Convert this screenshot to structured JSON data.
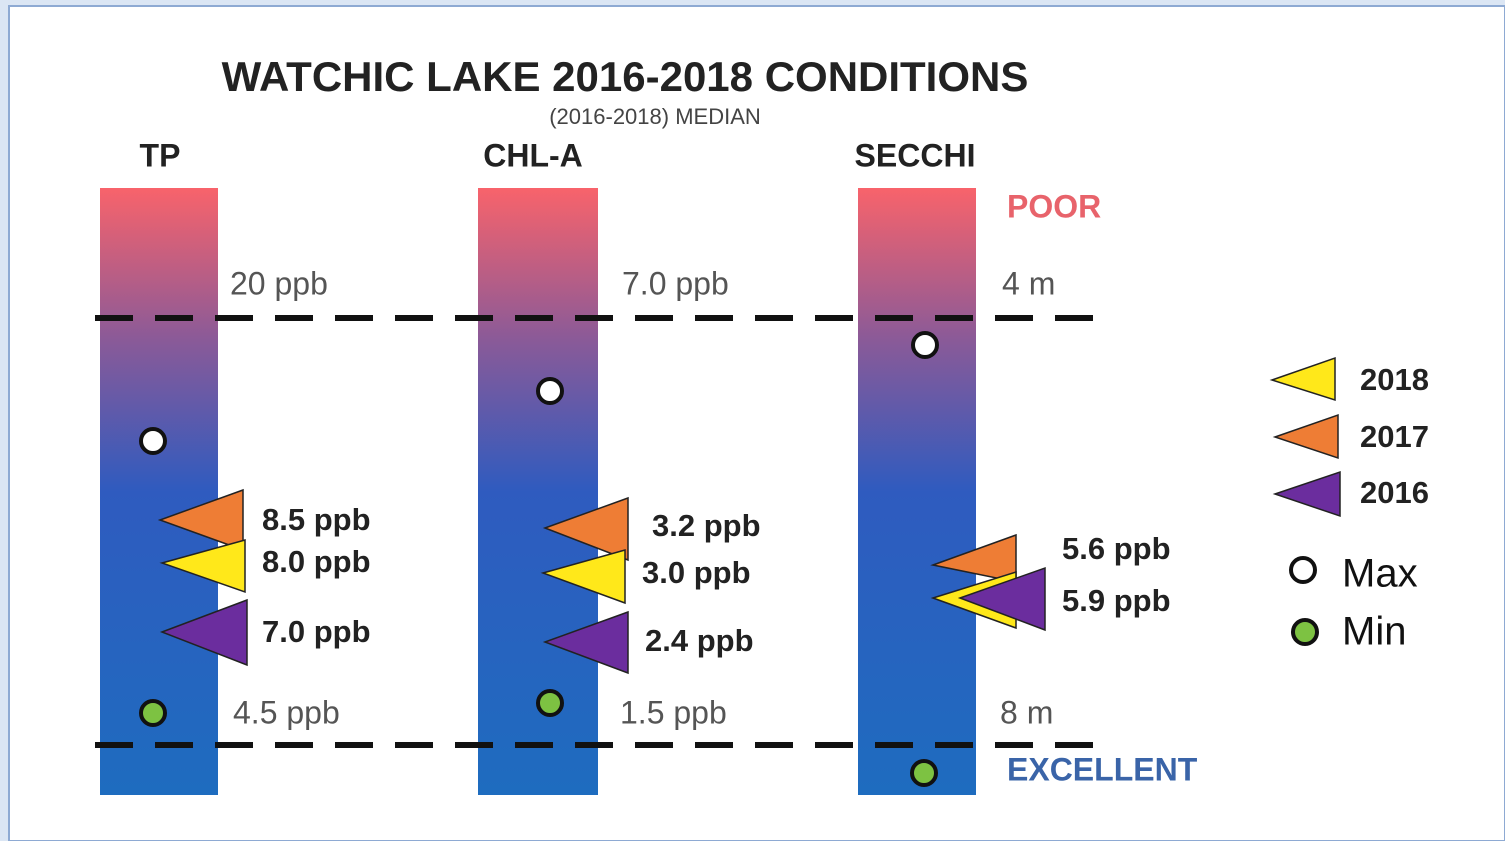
{
  "title": "WATCHIC LAKE 2016-2018 CONDITIONS",
  "subtitle": "(2016-2018) MEDIAN",
  "poor_label": "POOR",
  "excellent_label": "EXCELLENT",
  "columns": [
    {
      "label": "TP",
      "poor_threshold": "20 ppb",
      "excellent_threshold": "4.5 ppb",
      "median_labels": [
        "8.5 ppb",
        "8.0 ppb",
        "7.0 ppb"
      ]
    },
    {
      "label": "CHL-A",
      "poor_threshold": "7.0 ppb",
      "excellent_threshold": "1.5 ppb",
      "median_labels": [
        "3.2 ppb",
        "3.0 ppb",
        "2.4 ppb"
      ]
    },
    {
      "label": "SECCHI",
      "poor_threshold": "4 m",
      "excellent_threshold": "8 m",
      "median_labels": [
        "5.6 ppb",
        "5.9 ppb"
      ]
    }
  ],
  "legend": {
    "years": [
      "2018",
      "2017",
      "2016"
    ],
    "max": "Max",
    "min": "Min"
  }
}
